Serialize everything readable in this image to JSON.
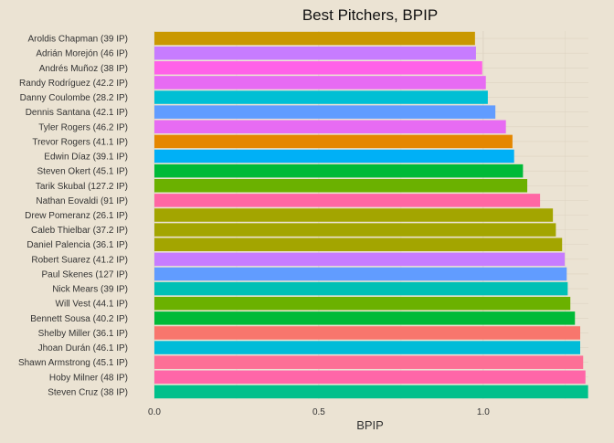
{
  "chart_data": {
    "type": "bar",
    "orientation": "horizontal",
    "title": "Best Pitchers, BPIP",
    "xlabel": "BPIP",
    "ylabel": "",
    "xlim": [
      0,
      1.32
    ],
    "xticks": [
      0.0,
      0.5,
      1.0
    ],
    "xtick_labels": [
      "0.0",
      "0.5",
      "1.0"
    ],
    "grid": true,
    "legend": "none",
    "background_color": "#ebe3d3",
    "grid_color": "#ddd3c2",
    "categories": [
      "Aroldis Chapman (39 IP)",
      "Adrián Morejón (46 IP)",
      "Andrés Muñoz (38 IP)",
      "Randy Rodríguez (42.2 IP)",
      "Danny Coulombe (28.2 IP)",
      "Dennis Santana (42.1 IP)",
      "Tyler Rogers (46.2 IP)",
      "Trevor Rogers (41.1 IP)",
      "Edwin Díaz (39.1 IP)",
      "Steven Okert (45.1 IP)",
      "Tarik Skubal (127.2 IP)",
      "Nathan Eovaldi (91 IP)",
      "Drew Pomeranz (26.1 IP)",
      "Caleb Thielbar (37.2 IP)",
      "Daniel Palencia (36.1 IP)",
      "Robert Suarez (41.2 IP)",
      "Paul Skenes (127 IP)",
      "Nick Mears (39 IP)",
      "Will Vest (44.1 IP)",
      "Bennett Sousa (40.2 IP)",
      "Shelby Miller (36.1 IP)",
      "Jhoan Durán (46.1 IP)",
      "Shawn Armstrong (45.1 IP)",
      "Hoby Milner (48 IP)",
      "Steven Cruz (38 IP)"
    ],
    "values": [
      0.975,
      0.978,
      0.997,
      1.008,
      1.014,
      1.037,
      1.069,
      1.089,
      1.094,
      1.121,
      1.134,
      1.173,
      1.212,
      1.221,
      1.24,
      1.248,
      1.254,
      1.257,
      1.265,
      1.279,
      1.295,
      1.295,
      1.304,
      1.311,
      1.319
    ],
    "colors": [
      "#c99800",
      "#c77cff",
      "#ff61e8",
      "#e76bf3",
      "#00bfd4",
      "#619cff",
      "#e76bf3",
      "#e58700",
      "#00b0f6",
      "#00ba38",
      "#6bb100",
      "#ff67a4",
      "#a3a500",
      "#a3a500",
      "#a3a500",
      "#c77cff",
      "#619cff",
      "#00c0b5",
      "#6bb100",
      "#00ba38",
      "#f8766d",
      "#00bcd8",
      "#fd6f96",
      "#ff66a8",
      "#00c08b"
    ]
  }
}
